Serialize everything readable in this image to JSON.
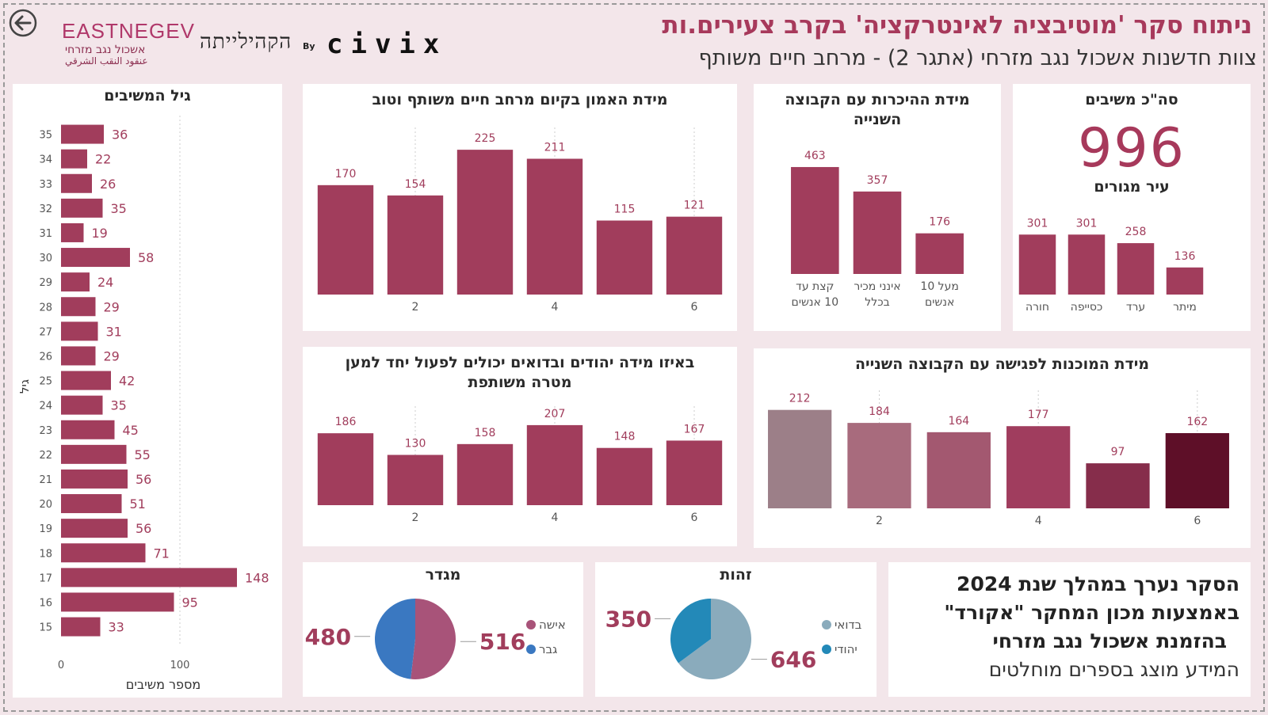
{
  "header": {
    "title": "ניתוח סקר 'מוטיבציה לאינטרקציה' בקרב צעירים.ות",
    "subtitle": "צוות חדשנות אשכול נגב מזרחי (אתגר 2) - מרחב חיים משותף",
    "logo_eastnegev": "EASTNEGEV",
    "logo_eastnegev_he": "אשכול נגב מזרחי",
    "logo_eastnegev_ar": "عنقود النقب الشرقي",
    "logo_hub": "הקהילייתה",
    "logo_by": "By",
    "logo_civix": "civix"
  },
  "colors": {
    "bar": "#a13d5c",
    "page_bg": "#f3e6ea",
    "accent": "#a7395b",
    "readiness": [
      "#9c7f88",
      "#a86b7d",
      "#a35870",
      "#a03d5e",
      "#862d4b",
      "#5e0f28"
    ],
    "gender": [
      "#a85379",
      "#3a78c1"
    ],
    "identity": [
      "#8aabbc",
      "#2389b8"
    ]
  },
  "panels": {
    "total": {
      "title": "סה\"כ משיבים",
      "value": "996",
      "city_title": "עיר מגורים"
    },
    "info": {
      "lines": [
        "הסקר נערך במהלך שנת 2024",
        "באמצעות מכון המחקר \"אקורד\"",
        "בהזמנת אשכול נגב מזרחי",
        "המידע מוצג בספרים מוחלטים"
      ]
    }
  },
  "chart_data": [
    {
      "id": "age",
      "type": "bar",
      "orientation": "horizontal",
      "title": "גיל המשיבים",
      "xlabel": "מספר משיבים",
      "ylabel": "גיל",
      "categories": [
        "35",
        "34",
        "33",
        "32",
        "31",
        "30",
        "29",
        "28",
        "27",
        "26",
        "25",
        "24",
        "23",
        "22",
        "21",
        "20",
        "19",
        "18",
        "17",
        "16",
        "15"
      ],
      "values": [
        36,
        22,
        26,
        35,
        19,
        58,
        24,
        29,
        31,
        29,
        42,
        35,
        45,
        55,
        56,
        51,
        56,
        71,
        148,
        95,
        33
      ],
      "xticks": [
        "0",
        "100"
      ],
      "xlim": [
        0,
        165
      ]
    },
    {
      "id": "trust",
      "type": "bar",
      "title": "מידת האמון בקיום מרחב חיים משותף וטוב",
      "categories": [
        "1",
        "2",
        "3",
        "4",
        "5",
        "6"
      ],
      "xtick_labels": [
        "",
        "2",
        "",
        "4",
        "",
        "6"
      ],
      "values": [
        170,
        154,
        225,
        211,
        115,
        121
      ],
      "ylim": [
        0,
        235
      ]
    },
    {
      "id": "acquaintance",
      "type": "bar",
      "title": "מידת ההיכרות עם הקבוצה השנייה",
      "categories": [
        "קצת עד 10 אנשים",
        "אינני מכיר בכלל",
        "מעל 10 אנשים"
      ],
      "values": [
        463,
        357,
        176
      ],
      "ylim": [
        0,
        480
      ]
    },
    {
      "id": "city",
      "type": "bar",
      "title": "עיר מגורים",
      "categories": [
        "חורה",
        "כסייפה",
        "ערד",
        "מיתר"
      ],
      "values": [
        301,
        301,
        258,
        136
      ],
      "ylim": [
        0,
        310
      ]
    },
    {
      "id": "cooperation",
      "type": "bar",
      "title": "באיזו מידה יהודים ובדואים יכולים לפעול יחד למען מטרה משותפת",
      "categories": [
        "1",
        "2",
        "3",
        "4",
        "5",
        "6"
      ],
      "xtick_labels": [
        "",
        "2",
        "",
        "4",
        "",
        "6"
      ],
      "values": [
        186,
        130,
        158,
        207,
        148,
        167
      ],
      "ylim": [
        0,
        215
      ]
    },
    {
      "id": "readiness",
      "type": "bar",
      "title": "מידת המוכנות לפגישה עם הקבוצה השנייה",
      "categories": [
        "1",
        "2",
        "3",
        "4",
        "5",
        "6"
      ],
      "xtick_labels": [
        "",
        "2",
        "",
        "4",
        "",
        "6"
      ],
      "values": [
        212,
        184,
        164,
        177,
        97,
        162
      ],
      "ylim": [
        0,
        220
      ]
    },
    {
      "id": "gender",
      "type": "pie",
      "title": "מגדר",
      "labels": [
        "אישה",
        "גבר"
      ],
      "values": [
        516,
        480
      ]
    },
    {
      "id": "identity",
      "type": "pie",
      "title": "זהות",
      "labels": [
        "בדואי",
        "יהודי"
      ],
      "values": [
        646,
        350
      ]
    }
  ]
}
